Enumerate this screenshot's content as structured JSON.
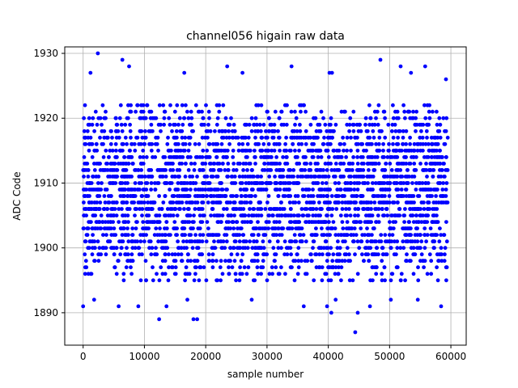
{
  "chart_data": {
    "type": "scatter",
    "title": "channel056 higain raw data",
    "xlabel": "sample number",
    "ylabel": "ADC Code",
    "xlim": [
      -3000,
      62500
    ],
    "ylim": [
      1885,
      1931
    ],
    "xticks": [
      0,
      10000,
      20000,
      30000,
      40000,
      50000,
      60000
    ],
    "yticks": [
      1890,
      1900,
      1910,
      1920,
      1930
    ],
    "grid": true,
    "marker_color": "#0000ff",
    "x_range": [
      0,
      59500
    ],
    "dense_band": [
      1895,
      1922
    ],
    "outliers": [
      {
        "x": 2400,
        "y": 1930
      },
      {
        "x": 6400,
        "y": 1929
      },
      {
        "x": 48500,
        "y": 1929
      },
      {
        "x": 1200,
        "y": 1927
      },
      {
        "x": 7500,
        "y": 1928
      },
      {
        "x": 16500,
        "y": 1927
      },
      {
        "x": 23500,
        "y": 1928
      },
      {
        "x": 26000,
        "y": 1927
      },
      {
        "x": 34000,
        "y": 1928
      },
      {
        "x": 40200,
        "y": 1927
      },
      {
        "x": 40600,
        "y": 1927
      },
      {
        "x": 51800,
        "y": 1928
      },
      {
        "x": 53500,
        "y": 1927
      },
      {
        "x": 55800,
        "y": 1928
      },
      {
        "x": 59200,
        "y": 1926
      },
      {
        "x": 1800,
        "y": 1892
      },
      {
        "x": 5800,
        "y": 1891
      },
      {
        "x": 9000,
        "y": 1891
      },
      {
        "x": 12400,
        "y": 1889
      },
      {
        "x": 13600,
        "y": 1891
      },
      {
        "x": 17000,
        "y": 1892
      },
      {
        "x": 18000,
        "y": 1889
      },
      {
        "x": 18600,
        "y": 1889
      },
      {
        "x": 27500,
        "y": 1892
      },
      {
        "x": 36000,
        "y": 1891
      },
      {
        "x": 39800,
        "y": 1891
      },
      {
        "x": 40500,
        "y": 1890
      },
      {
        "x": 41200,
        "y": 1892
      },
      {
        "x": 44400,
        "y": 1887
      },
      {
        "x": 44800,
        "y": 1890
      },
      {
        "x": 46800,
        "y": 1891
      },
      {
        "x": 50200,
        "y": 1892
      },
      {
        "x": 54600,
        "y": 1892
      },
      {
        "x": 58400,
        "y": 1891
      },
      {
        "x": 0,
        "y": 1891
      }
    ]
  }
}
